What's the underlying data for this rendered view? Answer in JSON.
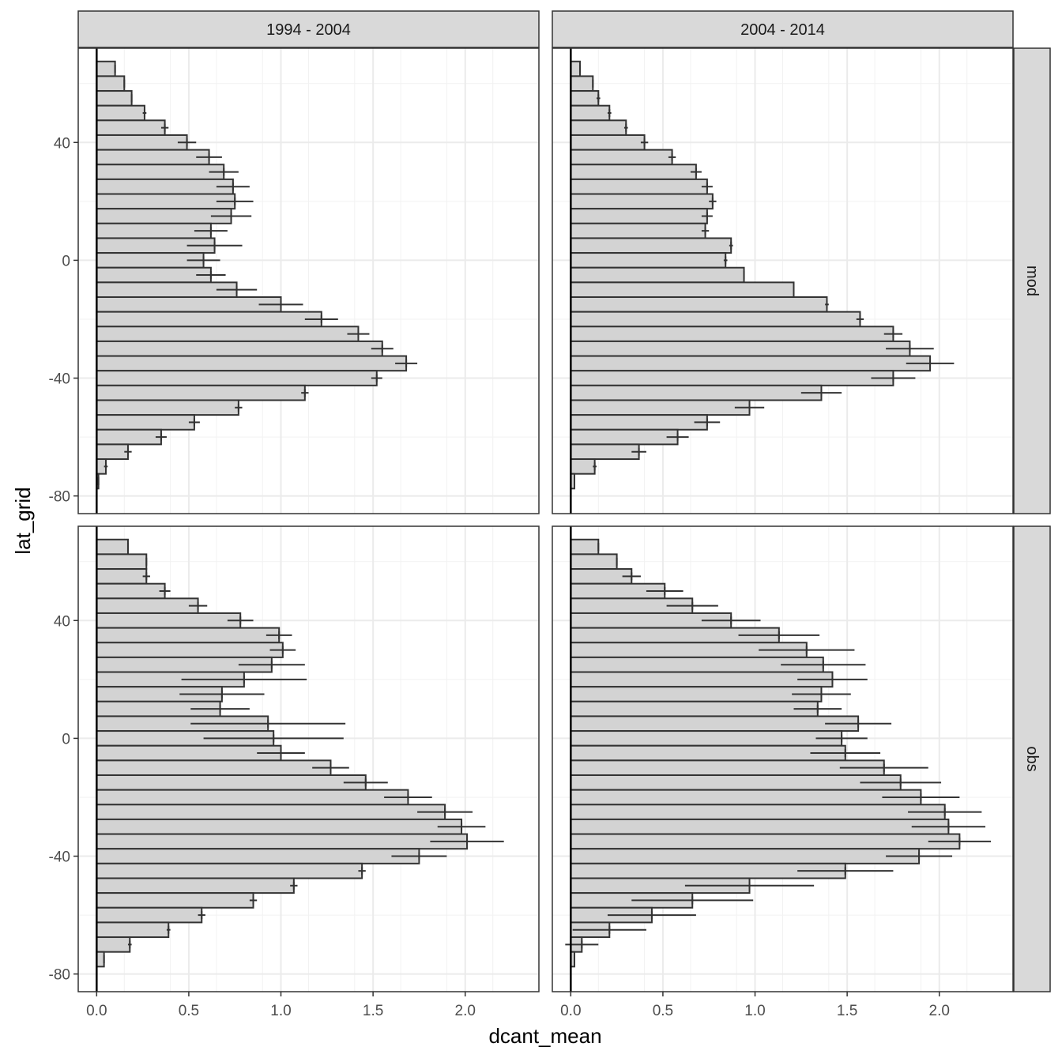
{
  "chart_data": {
    "type": "bar",
    "orientation": "horizontal",
    "facet": "grid",
    "xlabel": "dcant_mean",
    "ylabel": "lat_grid",
    "xlim": [
      -0.1,
      2.4
    ],
    "xticks": [
      0.0,
      0.5,
      1.0,
      1.5,
      2.0
    ],
    "xtick_labels": [
      "0.0",
      "0.5",
      "1.0",
      "1.5",
      "2.0"
    ],
    "ylim": [
      -86,
      72
    ],
    "yticks": [
      40,
      0,
      -40,
      -80
    ],
    "ytick_labels": [
      "40",
      "0",
      "-40",
      "-80"
    ],
    "grid": true,
    "bar_fill": "#d3d3d3",
    "bar_stroke": "#333333",
    "columns": [
      "1994 - 2004",
      "2004 - 2014"
    ],
    "rows": [
      "mod",
      "obs"
    ],
    "lat": [
      65,
      60,
      55,
      50,
      45,
      40,
      35,
      30,
      25,
      20,
      15,
      10,
      5,
      0,
      -5,
      -10,
      -15,
      -20,
      -25,
      -30,
      -35,
      -40,
      -45,
      -50,
      -55,
      -60,
      -65,
      -70,
      -75,
      -80
    ],
    "panels": [
      {
        "column": "1994 - 2004",
        "row": "mod",
        "values": [
          0.1,
          0.15,
          0.19,
          0.26,
          0.37,
          0.49,
          0.61,
          0.69,
          0.74,
          0.75,
          0.73,
          0.62,
          0.64,
          0.58,
          0.62,
          0.76,
          1.0,
          1.22,
          1.42,
          1.55,
          1.68,
          1.52,
          1.13,
          0.77,
          0.53,
          0.35,
          0.17,
          0.05,
          0.01,
          0.0
        ],
        "errors": [
          0.0,
          0.0,
          0.0,
          0.01,
          0.02,
          0.05,
          0.07,
          0.08,
          0.09,
          0.1,
          0.11,
          0.09,
          0.15,
          0.09,
          0.08,
          0.11,
          0.12,
          0.09,
          0.06,
          0.06,
          0.06,
          0.03,
          0.02,
          0.02,
          0.03,
          0.03,
          0.02,
          0.01,
          0.0,
          0.0
        ]
      },
      {
        "column": "2004 - 2014",
        "row": "mod",
        "values": [
          0.05,
          0.12,
          0.15,
          0.21,
          0.3,
          0.4,
          0.55,
          0.68,
          0.74,
          0.77,
          0.74,
          0.73,
          0.87,
          0.84,
          0.94,
          1.21,
          1.39,
          1.57,
          1.75,
          1.84,
          1.95,
          1.75,
          1.36,
          0.97,
          0.74,
          0.58,
          0.37,
          0.13,
          0.02,
          0.0
        ],
        "errors": [
          0.0,
          0.0,
          0.01,
          0.01,
          0.01,
          0.02,
          0.02,
          0.03,
          0.03,
          0.02,
          0.03,
          0.02,
          0.01,
          0.01,
          0.0,
          0.0,
          0.01,
          0.02,
          0.05,
          0.13,
          0.13,
          0.12,
          0.11,
          0.08,
          0.07,
          0.06,
          0.04,
          0.01,
          0.0,
          0.0
        ]
      },
      {
        "column": "1994 - 2004",
        "row": "obs",
        "values": [
          0.17,
          0.27,
          0.27,
          0.37,
          0.55,
          0.78,
          0.99,
          1.01,
          0.95,
          0.8,
          0.68,
          0.67,
          0.93,
          0.96,
          1.0,
          1.27,
          1.46,
          1.69,
          1.89,
          1.98,
          2.01,
          1.75,
          1.44,
          1.07,
          0.85,
          0.57,
          0.39,
          0.18,
          0.04,
          0.0
        ],
        "errors": [
          0.0,
          0.0,
          0.02,
          0.03,
          0.05,
          0.07,
          0.07,
          0.07,
          0.18,
          0.34,
          0.23,
          0.16,
          0.42,
          0.38,
          0.13,
          0.1,
          0.12,
          0.13,
          0.15,
          0.13,
          0.2,
          0.15,
          0.02,
          0.02,
          0.02,
          0.02,
          0.01,
          0.01,
          0.0,
          0.0
        ]
      },
      {
        "column": "2004 - 2014",
        "row": "obs",
        "values": [
          0.15,
          0.25,
          0.33,
          0.51,
          0.66,
          0.87,
          1.13,
          1.28,
          1.37,
          1.42,
          1.36,
          1.34,
          1.56,
          1.47,
          1.49,
          1.7,
          1.79,
          1.9,
          2.03,
          2.05,
          2.11,
          1.89,
          1.49,
          0.97,
          0.66,
          0.44,
          0.21,
          0.06,
          0.02,
          0.0
        ],
        "errors": [
          0.0,
          0.0,
          0.05,
          0.1,
          0.14,
          0.16,
          0.22,
          0.26,
          0.23,
          0.19,
          0.16,
          0.13,
          0.18,
          0.14,
          0.19,
          0.24,
          0.22,
          0.21,
          0.2,
          0.2,
          0.17,
          0.18,
          0.26,
          0.35,
          0.33,
          0.24,
          0.2,
          0.09,
          0.0,
          0.0
        ]
      }
    ]
  }
}
